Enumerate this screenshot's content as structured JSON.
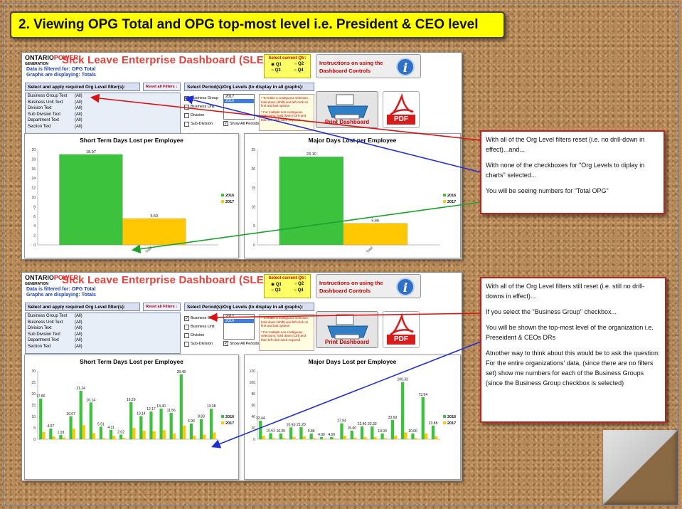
{
  "title": "2. Viewing OPG Total and OPG top-most level i.e. President & CEO level",
  "logo": {
    "part1": "ONTARIO",
    "part2": "POWER",
    "sub": "GENERATION"
  },
  "dashboard_title": "Sick Leave Enterprise Dashboard (SLED)",
  "filter_note_1": "Data is filtered for: OPG Total",
  "filter_note_2": "Graphs are displaying: Totals",
  "quarter": {
    "label": "Select current Qtr:",
    "options": [
      "Q1",
      "Q2",
      "Q3",
      "Q4"
    ]
  },
  "instructions_label": "Instructions on using the Dashboard Controls",
  "info_glyph": "i",
  "panel_org_filter": "Select and apply required Org Level filter(s):",
  "reset_label": "Reset all Filters ↓",
  "panel_period": "Select Period(s)/Org Levels (to display in all graphs):",
  "filters": [
    {
      "name": "Business Group Text",
      "value": "(All)"
    },
    {
      "name": "Business Unit Text",
      "value": "(All)"
    },
    {
      "name": "Division Text",
      "value": "(All)"
    },
    {
      "name": "Sub Division Text",
      "value": "(All)"
    },
    {
      "name": "Department Text",
      "value": "(All)"
    },
    {
      "name": "Section Text",
      "value": "(All)"
    }
  ],
  "checkboxes": [
    "Business Group",
    "Business Unit",
    "Division",
    "Sub-Division"
  ],
  "periods": [
    "2017",
    "2016"
  ],
  "hint_1": "* To make a contiguous selection, hold down (Shift) and left-click on first and last options",
  "hint_2": "* For multiple non-contiguous selections, hold down (Ctrl) and then left-click each required",
  "show_all": "Show All Periods",
  "print_label": "Print Dashboard",
  "pdf_label": "PDF",
  "top_chart_titles": [
    "Short Term Days Lost per Employee",
    "Major Days Lost per Employee"
  ],
  "bot_chart_titles": [
    "Short Term Days Lost per Employee",
    "Major Days Lost per Employee"
  ],
  "chart_data": [
    {
      "type": "bar",
      "title": "Short Term Days Lost per Employee",
      "categories": [
        "Total"
      ],
      "series": [
        {
          "name": "2016",
          "values": [
            18.97
          ]
        },
        {
          "name": "2017",
          "values": [
            5.53
          ]
        }
      ],
      "ylim": [
        0,
        20
      ],
      "yticks": [
        0,
        2,
        4,
        6,
        8,
        10,
        12,
        14,
        16,
        18,
        20
      ],
      "colors": {
        "2016": "#3cc23c",
        "2017": "#ffc800"
      }
    },
    {
      "type": "bar",
      "title": "Major Days Lost per Employee",
      "categories": [
        "Total"
      ],
      "series": [
        {
          "name": "2016",
          "values": [
            23.1
          ]
        },
        {
          "name": "2017",
          "values": [
            5.66
          ]
        }
      ],
      "ylim": [
        0,
        25
      ],
      "yticks": [
        0,
        5,
        10,
        15,
        20,
        25
      ],
      "colors": {
        "2016": "#3cc23c",
        "2017": "#ffc800"
      }
    },
    {
      "type": "bar",
      "title": "Short Term Days Lost per Employee",
      "series": [
        {
          "name": "2016",
          "values": [
            17.86,
            4.67,
            1.93,
            10.07,
            21.24,
            16.14,
            5.51,
            4.11,
            2.02,
            16.29,
            10.14,
            12.17,
            13.4,
            11.56,
            28.48,
            6.93,
            8.83,
            13.38
          ]
        },
        {
          "name": "2017",
          "values": [
            3.2,
            1.2,
            0.8,
            4.62,
            6.2,
            2.7,
            0.5,
            1.5,
            0.6,
            4.88,
            3.72,
            3.5,
            4.0,
            2.5,
            6.0,
            1.5,
            2.0,
            3.0
          ]
        }
      ],
      "ylim": [
        0,
        30
      ],
      "yticks": [
        0,
        5,
        10,
        15,
        20,
        25,
        30
      ],
      "colors": {
        "2016": "#3cc23c",
        "2017": "#ffc800"
      }
    },
    {
      "type": "bar",
      "title": "Major Days Lost per Employee",
      "series": [
        {
          "name": "2016",
          "values": [
            32.44,
            10.63,
            10.0,
            20.8,
            21.2,
            9.86,
            4.0,
            4.0,
            27.94,
            15.0,
            22.4,
            22.33,
            10.0,
            33.69,
            100.33,
            10.0,
            73.94,
            23.88
          ]
        },
        {
          "name": "2017",
          "values": [
            6.0,
            2.0,
            2.5,
            4.0,
            5.0,
            2.0,
            1.0,
            1.5,
            6.0,
            3.0,
            4.0,
            4.0,
            2.0,
            6.0,
            12.0,
            2.0,
            10.0,
            5.0
          ]
        }
      ],
      "ylim": [
        0,
        120
      ],
      "yticks": [
        0,
        20,
        40,
        60,
        80,
        100,
        120
      ],
      "colors": {
        "2016": "#3cc23c",
        "2017": "#ffc800"
      }
    }
  ],
  "legend": [
    "2016",
    "2017"
  ],
  "note_top": [
    "With all of the Org Level filters reset (i.e. no drill-down in effect)...and...",
    "With none of the checkboxes for \"Org Levels to diplay in charts\" selected...",
    "You will be seeing numbers for \"Total OPG\""
  ],
  "note_bot": [
    "With all of the Org Level filters still reset (i.e. still no drill-downs in effect)...",
    "If you select the \"Business Group\" checkbox...",
    "You will be shown the top-most level of the organization i.e. Preseident & CEOs DRs",
    "Atnother way to think about this would be to ask the question: For the entire organizations' data, (since there are no filters set) show me numbers for each of the Business Groups (since the Business  Group checkbox is selected)"
  ]
}
